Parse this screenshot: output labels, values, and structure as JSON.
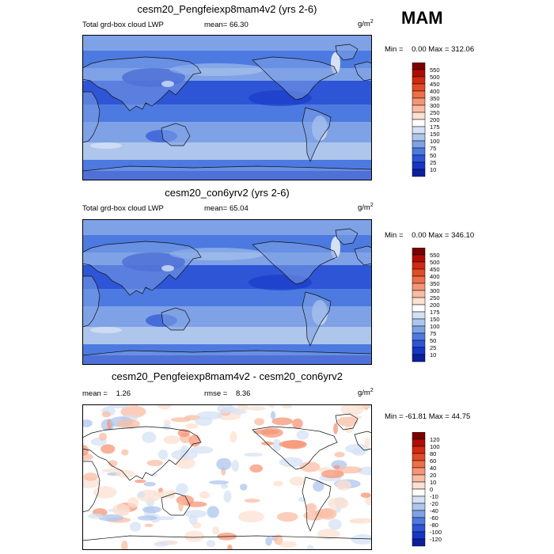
{
  "season_label": "MAM",
  "units_base": "g/m",
  "units_exp": "2",
  "panels": [
    {
      "title": "cesm20_Pengfeiexp8mam4v2 (yrs 2-6)",
      "left_label": "Total grd-box cloud LWP",
      "mean_label": "mean=",
      "mean_value": "66.30",
      "min_label": "Min =",
      "min_value": "0.00",
      "max_label": "Max =",
      "max_value": "312.06"
    },
    {
      "title": "cesm20_con6yrv2 (yrs 2-6)",
      "left_label": "Total grd-box cloud LWP",
      "mean_label": "mean=",
      "mean_value": "65.04",
      "min_label": "Min =",
      "min_value": "0.00",
      "max_label": "Max =",
      "max_value": "346.10"
    },
    {
      "title": "cesm20_Pengfeiexp8mam4v2 - cesm20_con6yrv2",
      "mean_label": "mean =",
      "mean_value": "1.26",
      "rmse_label": "rmse =",
      "rmse_value": "8.36",
      "min_label": "Min =",
      "min_value": "-61.81",
      "max_label": "Max =",
      "max_value": "44.75"
    }
  ],
  "chart_data": [
    {
      "type": "heatmap",
      "title": "cesm20_Pengfeiexp8mam4v2 (yrs 2-6)",
      "variable": "Total grd-box cloud LWP",
      "units": "g/m2",
      "stats": {
        "mean": 66.3,
        "min": 0.0,
        "max": 312.06
      },
      "colorbar": {
        "levels": [
          550,
          500,
          450,
          400,
          350,
          300,
          250,
          200,
          175,
          150,
          100,
          75,
          50,
          25,
          10
        ],
        "colors": [
          "#7a0000",
          "#b00d00",
          "#d22a10",
          "#e24a28",
          "#ee6e48",
          "#f59577",
          "#f9bda4",
          "#fce0d2",
          "#ffffff",
          "#d4e1f4",
          "#aec6ec",
          "#7fa2e6",
          "#4d7ae0",
          "#2e55d6",
          "#1537c6",
          "#0c1f9c"
        ]
      }
    },
    {
      "type": "heatmap",
      "title": "cesm20_con6yrv2 (yrs 2-6)",
      "variable": "Total grd-box cloud LWP",
      "units": "g/m2",
      "stats": {
        "mean": 65.04,
        "min": 0.0,
        "max": 346.1
      },
      "colorbar": {
        "levels": [
          550,
          500,
          450,
          400,
          350,
          300,
          250,
          200,
          175,
          150,
          100,
          75,
          50,
          25,
          10
        ],
        "colors": [
          "#7a0000",
          "#b00d00",
          "#d22a10",
          "#e24a28",
          "#ee6e48",
          "#f59577",
          "#f9bda4",
          "#fce0d2",
          "#ffffff",
          "#d4e1f4",
          "#aec6ec",
          "#7fa2e6",
          "#4d7ae0",
          "#2e55d6",
          "#1537c6",
          "#0c1f9c"
        ]
      }
    },
    {
      "type": "heatmap",
      "title": "cesm20_Pengfeiexp8mam4v2 - cesm20_con6yrv2",
      "units": "g/m2",
      "stats": {
        "mean": 1.26,
        "rmse": 8.36,
        "min": -61.81,
        "max": 44.75
      },
      "colorbar": {
        "levels": [
          120,
          100,
          80,
          60,
          40,
          20,
          10,
          0,
          -10,
          -20,
          -40,
          -60,
          -80,
          -100,
          -120
        ],
        "colors": [
          "#7a0000",
          "#b00d00",
          "#d22a10",
          "#e24a28",
          "#ee6e48",
          "#f59577",
          "#f9bda4",
          "#fce0d2",
          "#ffffff",
          "#d4e1f4",
          "#aec6ec",
          "#7fa2e6",
          "#4d7ae0",
          "#2e55d6",
          "#1537c6",
          "#0c1f9c"
        ]
      }
    }
  ]
}
